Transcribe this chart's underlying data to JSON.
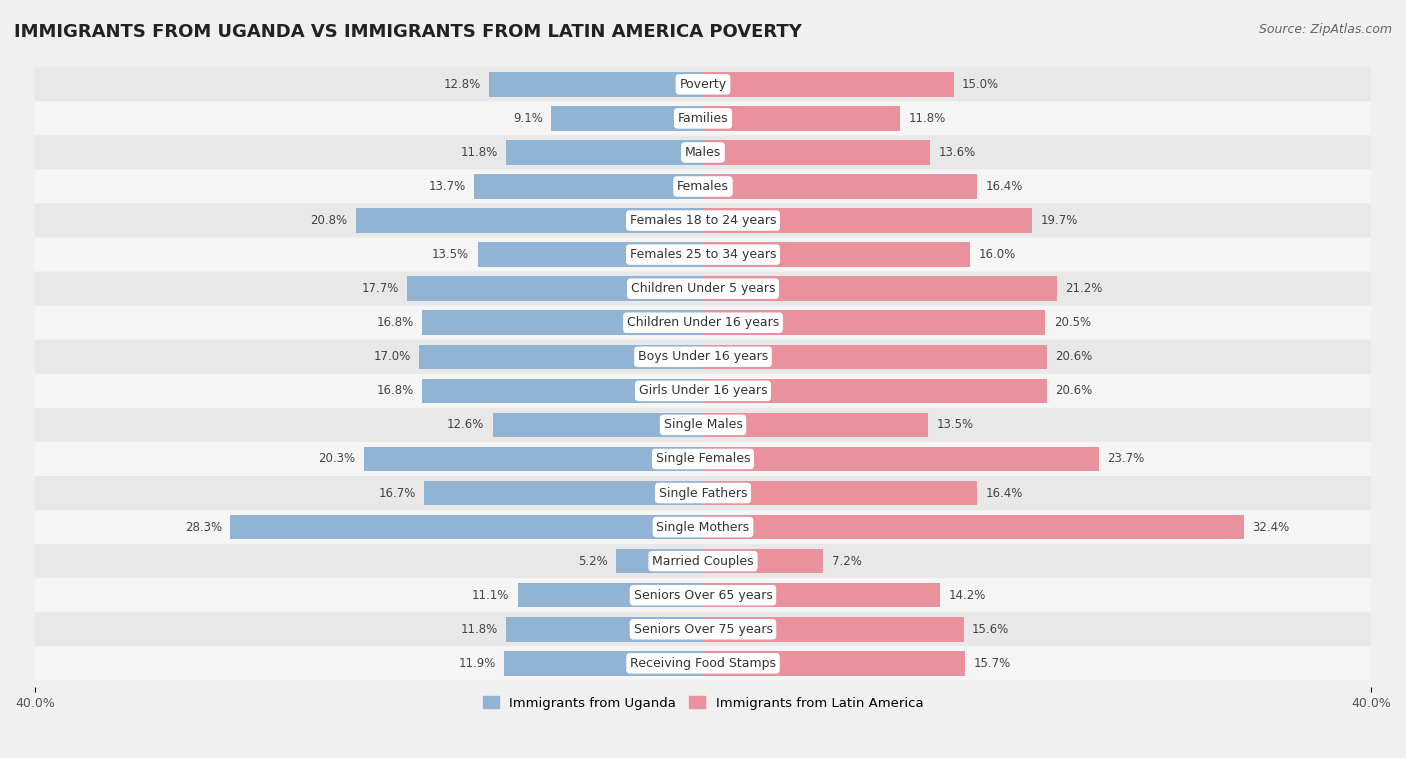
{
  "title": "IMMIGRANTS FROM UGANDA VS IMMIGRANTS FROM LATIN AMERICA POVERTY",
  "source": "Source: ZipAtlas.com",
  "categories": [
    "Poverty",
    "Families",
    "Males",
    "Females",
    "Females 18 to 24 years",
    "Females 25 to 34 years",
    "Children Under 5 years",
    "Children Under 16 years",
    "Boys Under 16 years",
    "Girls Under 16 years",
    "Single Males",
    "Single Females",
    "Single Fathers",
    "Single Mothers",
    "Married Couples",
    "Seniors Over 65 years",
    "Seniors Over 75 years",
    "Receiving Food Stamps"
  ],
  "uganda_values": [
    12.8,
    9.1,
    11.8,
    13.7,
    20.8,
    13.5,
    17.7,
    16.8,
    17.0,
    16.8,
    12.6,
    20.3,
    16.7,
    28.3,
    5.2,
    11.1,
    11.8,
    11.9
  ],
  "latin_values": [
    15.0,
    11.8,
    13.6,
    16.4,
    19.7,
    16.0,
    21.2,
    20.5,
    20.6,
    20.6,
    13.5,
    23.7,
    16.4,
    32.4,
    7.2,
    14.2,
    15.6,
    15.7
  ],
  "uganda_color": "#92b4d4",
  "latin_color": "#e9919d",
  "row_color_even": "#e8e8e8",
  "row_color_odd": "#f5f5f5",
  "background_color": "#f0f0f0",
  "xlim": 40.0,
  "label_uganda": "Immigrants from Uganda",
  "label_latin": "Immigrants from Latin America",
  "title_fontsize": 13,
  "source_fontsize": 9,
  "tick_fontsize": 9,
  "category_fontsize": 9,
  "value_fontsize": 8.5
}
